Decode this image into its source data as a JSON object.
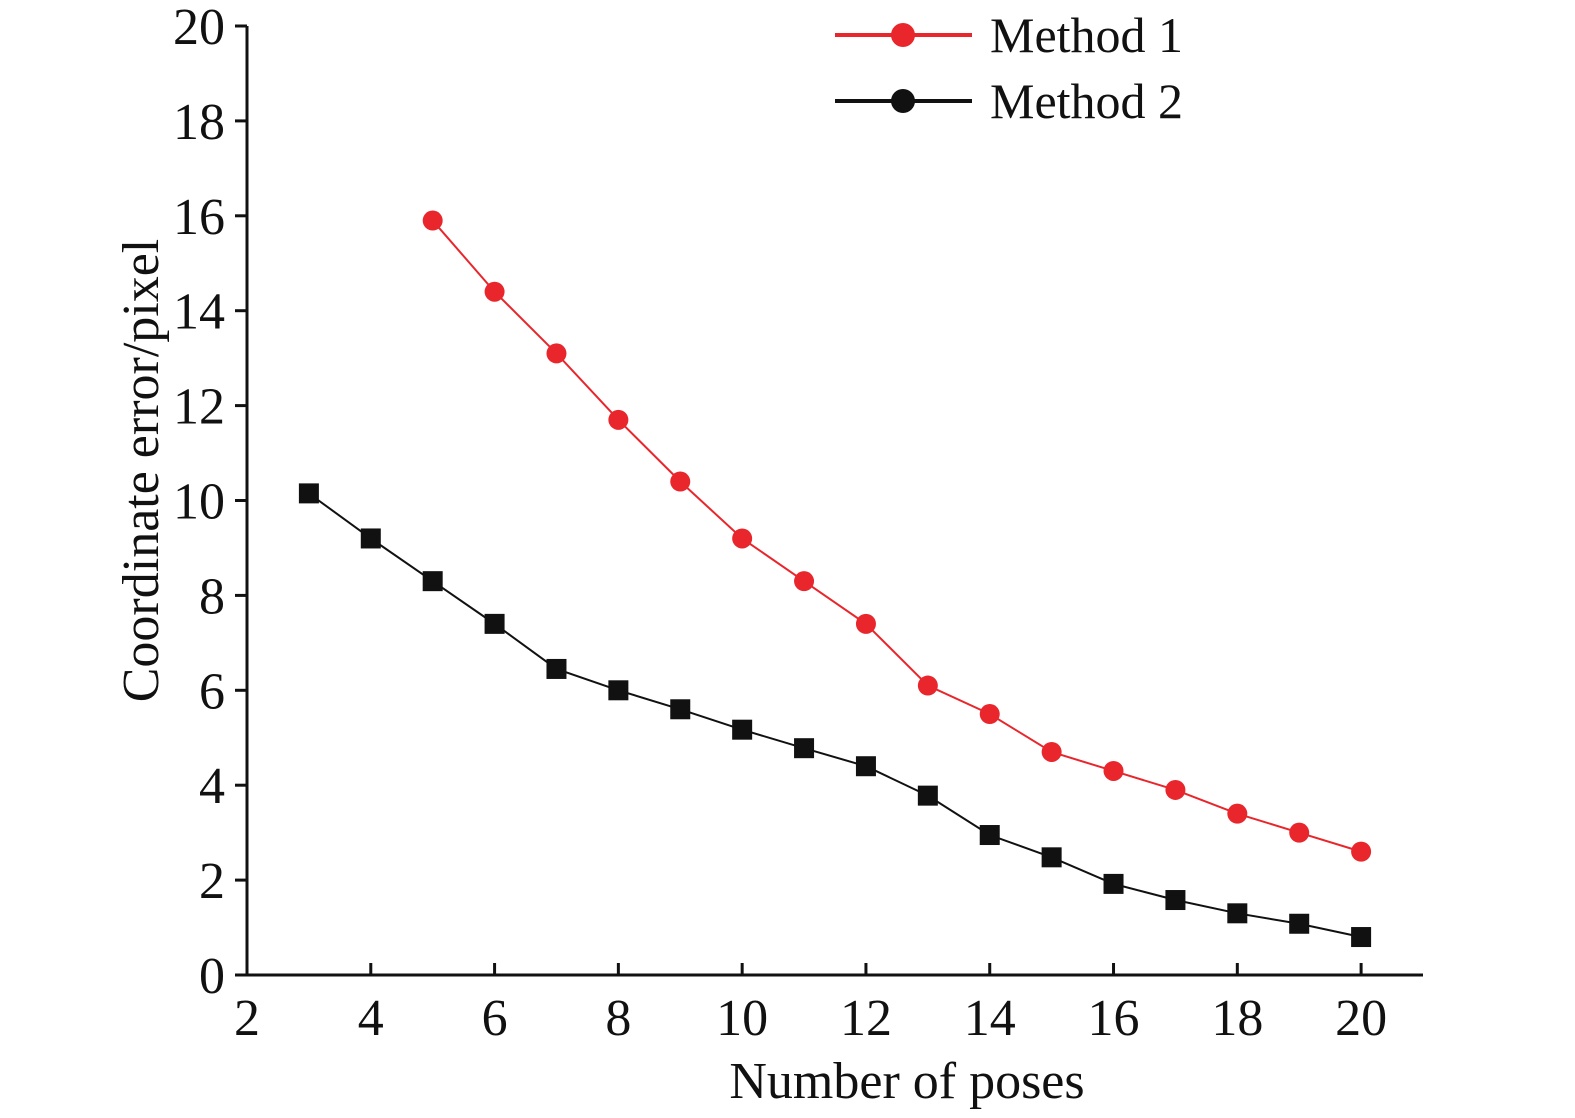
{
  "chart_data": {
    "type": "line",
    "xlabel": "Number of poses",
    "ylabel": "Coordinate error/pixel",
    "xlim": [
      2,
      21
    ],
    "ylim": [
      0,
      20
    ],
    "x_ticks": [
      "2",
      "4",
      "6",
      "8",
      "10",
      "12",
      "14",
      "16",
      "18",
      "20"
    ],
    "y_ticks": [
      "0",
      "2",
      "4",
      "6",
      "8",
      "10",
      "12",
      "14",
      "16",
      "18",
      "20"
    ],
    "legend_position": "top-right",
    "series": [
      {
        "name": "Method 1",
        "color": "#e8262c",
        "marker": "circle",
        "legend_marker": "circle",
        "x": [
          5,
          6,
          7,
          8,
          9,
          10,
          11,
          12,
          13,
          14,
          15,
          16,
          17,
          18,
          19,
          20
        ],
        "values": [
          15.9,
          14.4,
          13.1,
          11.7,
          10.4,
          9.2,
          8.3,
          7.4,
          6.1,
          5.5,
          4.7,
          4.3,
          3.9,
          3.4,
          3.0,
          2.6
        ]
      },
      {
        "name": "Method 2",
        "color": "#111111",
        "marker": "square",
        "legend_marker": "circle",
        "x": [
          3,
          4,
          5,
          6,
          7,
          8,
          9,
          10,
          11,
          12,
          13,
          14,
          15,
          16,
          17,
          18,
          19,
          20
        ],
        "values": [
          10.15,
          9.2,
          8.3,
          7.4,
          6.45,
          6.0,
          5.6,
          5.17,
          4.78,
          4.4,
          3.78,
          2.95,
          2.48,
          1.92,
          1.58,
          1.3,
          1.08,
          0.8
        ]
      }
    ]
  }
}
